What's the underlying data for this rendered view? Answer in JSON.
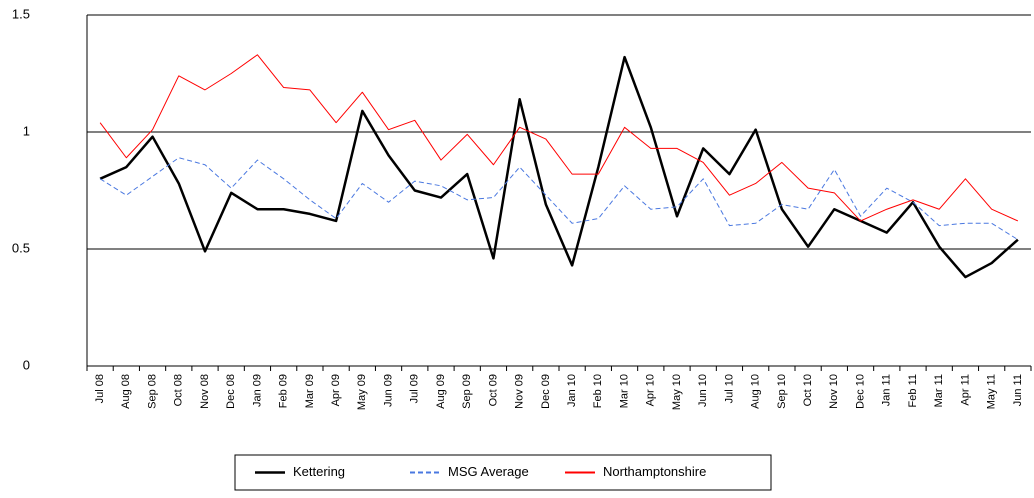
{
  "chart_data": {
    "type": "line",
    "categories": [
      "Jul 08",
      "Aug 08",
      "Sep 08",
      "Oct 08",
      "Nov 08",
      "Dec 08",
      "Jan 09",
      "Feb 09",
      "Mar 09",
      "Apr 09",
      "May 09",
      "Jun 09",
      "Jul 09",
      "Aug 09",
      "Sep 09",
      "Oct 09",
      "Nov 09",
      "Dec 09",
      "Jan 10",
      "Feb 10",
      "Mar 10",
      "Apr 10",
      "May 10",
      "Jun 10",
      "Jul 10",
      "Aug 10",
      "Sep 10",
      "Oct 10",
      "Nov 10",
      "Dec 10",
      "Jan 11",
      "Feb 11",
      "Mar 11",
      "Apr 11",
      "May 11",
      "Jun 11"
    ],
    "series": [
      {
        "name": "Kettering",
        "color": "#000000",
        "style": "solid",
        "width": 2.5,
        "values": [
          0.8,
          0.85,
          0.98,
          0.78,
          0.49,
          0.74,
          0.67,
          0.67,
          0.65,
          0.62,
          1.09,
          0.9,
          0.75,
          0.72,
          0.82,
          0.46,
          1.14,
          0.69,
          0.43,
          0.85,
          1.32,
          1.02,
          0.64,
          0.93,
          0.82,
          1.01,
          0.67,
          0.51,
          0.67,
          0.62,
          0.57,
          0.7,
          0.51,
          0.38,
          0.44,
          0.54
        ]
      },
      {
        "name": "MSG Average",
        "color": "#4a78e0",
        "style": "dashed",
        "width": 1,
        "values": [
          0.8,
          0.73,
          0.81,
          0.89,
          0.86,
          0.76,
          0.88,
          0.8,
          0.71,
          0.63,
          0.78,
          0.7,
          0.79,
          0.77,
          0.71,
          0.72,
          0.85,
          0.73,
          0.61,
          0.63,
          0.77,
          0.67,
          0.68,
          0.8,
          0.6,
          0.61,
          0.69,
          0.67,
          0.84,
          0.64,
          0.76,
          0.7,
          0.6,
          0.61,
          0.61,
          0.54
        ]
      },
      {
        "name": "Northamptonshire",
        "color": "#ff0000",
        "style": "solid",
        "width": 1,
        "values": [
          1.04,
          0.89,
          1.01,
          1.24,
          1.18,
          1.25,
          1.33,
          1.19,
          1.18,
          1.04,
          1.17,
          1.01,
          1.05,
          0.88,
          0.99,
          0.86,
          1.02,
          0.97,
          0.82,
          0.82,
          1.02,
          0.93,
          0.93,
          0.87,
          0.73,
          0.78,
          0.87,
          0.76,
          0.74,
          0.62,
          0.67,
          0.71,
          0.67,
          0.8,
          0.67,
          0.62
        ]
      }
    ],
    "ylim": [
      0,
      1.5
    ],
    "yticks": [
      0,
      0.5,
      1,
      1.5
    ],
    "grid": true,
    "legend": "bottom"
  }
}
